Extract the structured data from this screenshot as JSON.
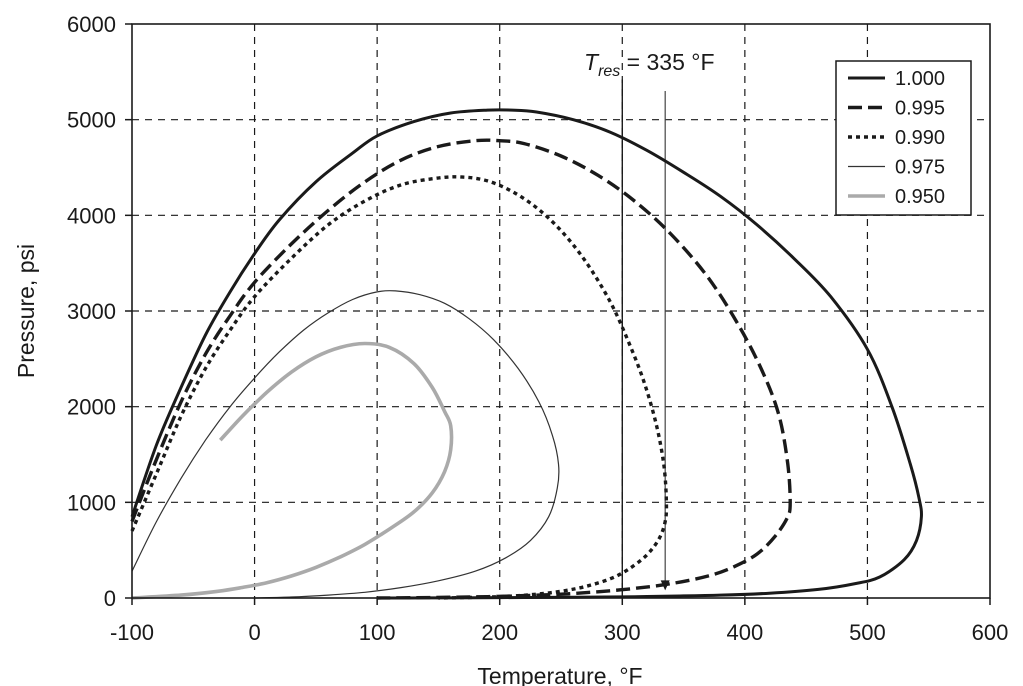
{
  "chart_data": {
    "type": "line",
    "title": "",
    "xlabel": "Temperature, °F",
    "ylabel": "Pressure, psi",
    "xlim": [
      -100,
      600
    ],
    "ylim": [
      0,
      6000
    ],
    "xticks": [
      -100,
      0,
      100,
      200,
      300,
      400,
      500,
      600
    ],
    "yticks": [
      0,
      1000,
      2000,
      3000,
      4000,
      5000,
      6000
    ],
    "grid": true,
    "legend_position": "top-right",
    "annotation": {
      "label_main": "T",
      "label_sub": "res",
      "label_rest": " = 335 °F",
      "x": 335,
      "arrow_from_y": 5300,
      "arrow_to_y": 80
    },
    "vertical_reference_line": {
      "x": 300
    },
    "series": [
      {
        "name": "1.000",
        "color": "#1a1a1a",
        "style": "solid",
        "x": [
          -100,
          -80,
          -60,
          -40,
          -20,
          0,
          20,
          50,
          80,
          100,
          130,
          160,
          190,
          210,
          230,
          260,
          290,
          320,
          350,
          380,
          410,
          440,
          470,
          500,
          520,
          535,
          542,
          544,
          540,
          530,
          510,
          490,
          460,
          420,
          380,
          340,
          300,
          260,
          220,
          180,
          140,
          100
        ],
        "y": [
          850,
          1600,
          2200,
          2750,
          3200,
          3600,
          3950,
          4350,
          4650,
          4830,
          4980,
          5070,
          5100,
          5100,
          5080,
          5000,
          4870,
          4680,
          4450,
          4200,
          3900,
          3550,
          3150,
          2600,
          2000,
          1400,
          1050,
          850,
          600,
          400,
          220,
          150,
          90,
          50,
          30,
          20,
          12,
          8,
          5,
          3,
          1,
          0
        ]
      },
      {
        "name": "0.995",
        "color": "#1a1a1a",
        "style": "dash",
        "x": [
          -100,
          -80,
          -60,
          -40,
          -20,
          0,
          30,
          60,
          90,
          120,
          150,
          180,
          200,
          220,
          250,
          280,
          310,
          340,
          370,
          395,
          415,
          428,
          435,
          437,
          435,
          425,
          410,
          390,
          370,
          340,
          310,
          280,
          250,
          220,
          190,
          160,
          130,
          100
        ],
        "y": [
          800,
          1450,
          2050,
          2550,
          2950,
          3300,
          3700,
          4050,
          4350,
          4580,
          4720,
          4780,
          4780,
          4750,
          4620,
          4420,
          4150,
          3800,
          3350,
          2850,
          2350,
          1900,
          1400,
          1000,
          850,
          650,
          460,
          320,
          230,
          150,
          100,
          65,
          40,
          25,
          14,
          8,
          3,
          0
        ]
      },
      {
        "name": "0.990",
        "color": "#1a1a1a",
        "style": "dot",
        "x": [
          -100,
          -80,
          -60,
          -40,
          -20,
          0,
          30,
          60,
          90,
          120,
          150,
          170,
          190,
          210,
          230,
          250,
          270,
          290,
          305,
          318,
          328,
          334,
          336,
          335,
          330,
          320,
          305,
          290,
          270,
          250,
          230,
          210,
          190,
          170,
          150
        ],
        "y": [
          700,
          1300,
          1900,
          2400,
          2800,
          3150,
          3550,
          3900,
          4150,
          4320,
          4390,
          4400,
          4360,
          4250,
          4080,
          3840,
          3520,
          3100,
          2680,
          2250,
          1800,
          1380,
          1000,
          800,
          620,
          450,
          300,
          200,
          120,
          70,
          40,
          20,
          10,
          4,
          0
        ]
      },
      {
        "name": "0.975",
        "color": "#333333",
        "style": "thin",
        "x": [
          -100,
          -80,
          -60,
          -40,
          -20,
          0,
          20,
          40,
          60,
          80,
          100,
          115,
          135,
          155,
          175,
          195,
          215,
          232,
          243,
          248,
          247,
          240,
          225,
          205,
          180,
          150,
          120,
          90,
          60,
          30,
          0
        ],
        "y": [
          280,
          800,
          1250,
          1650,
          2000,
          2300,
          2570,
          2800,
          2980,
          3120,
          3200,
          3210,
          3170,
          3080,
          2920,
          2700,
          2400,
          2050,
          1700,
          1400,
          1150,
          850,
          600,
          420,
          280,
          180,
          110,
          60,
          30,
          10,
          0
        ]
      },
      {
        "name": "0.950",
        "color": "#aaaaaa",
        "style": "gray",
        "x": [
          -28,
          -10,
          10,
          30,
          50,
          70,
          90,
          110,
          130,
          145,
          155,
          160,
          160,
          155,
          145,
          130,
          110,
          90,
          70,
          50,
          30,
          10,
          -10,
          -30,
          -60,
          -100
        ],
        "y": [
          1650,
          1900,
          2150,
          2360,
          2520,
          2620,
          2660,
          2620,
          2450,
          2200,
          1950,
          1800,
          1550,
          1320,
          1100,
          900,
          720,
          560,
          430,
          320,
          230,
          160,
          110,
          70,
          30,
          0
        ]
      }
    ]
  }
}
